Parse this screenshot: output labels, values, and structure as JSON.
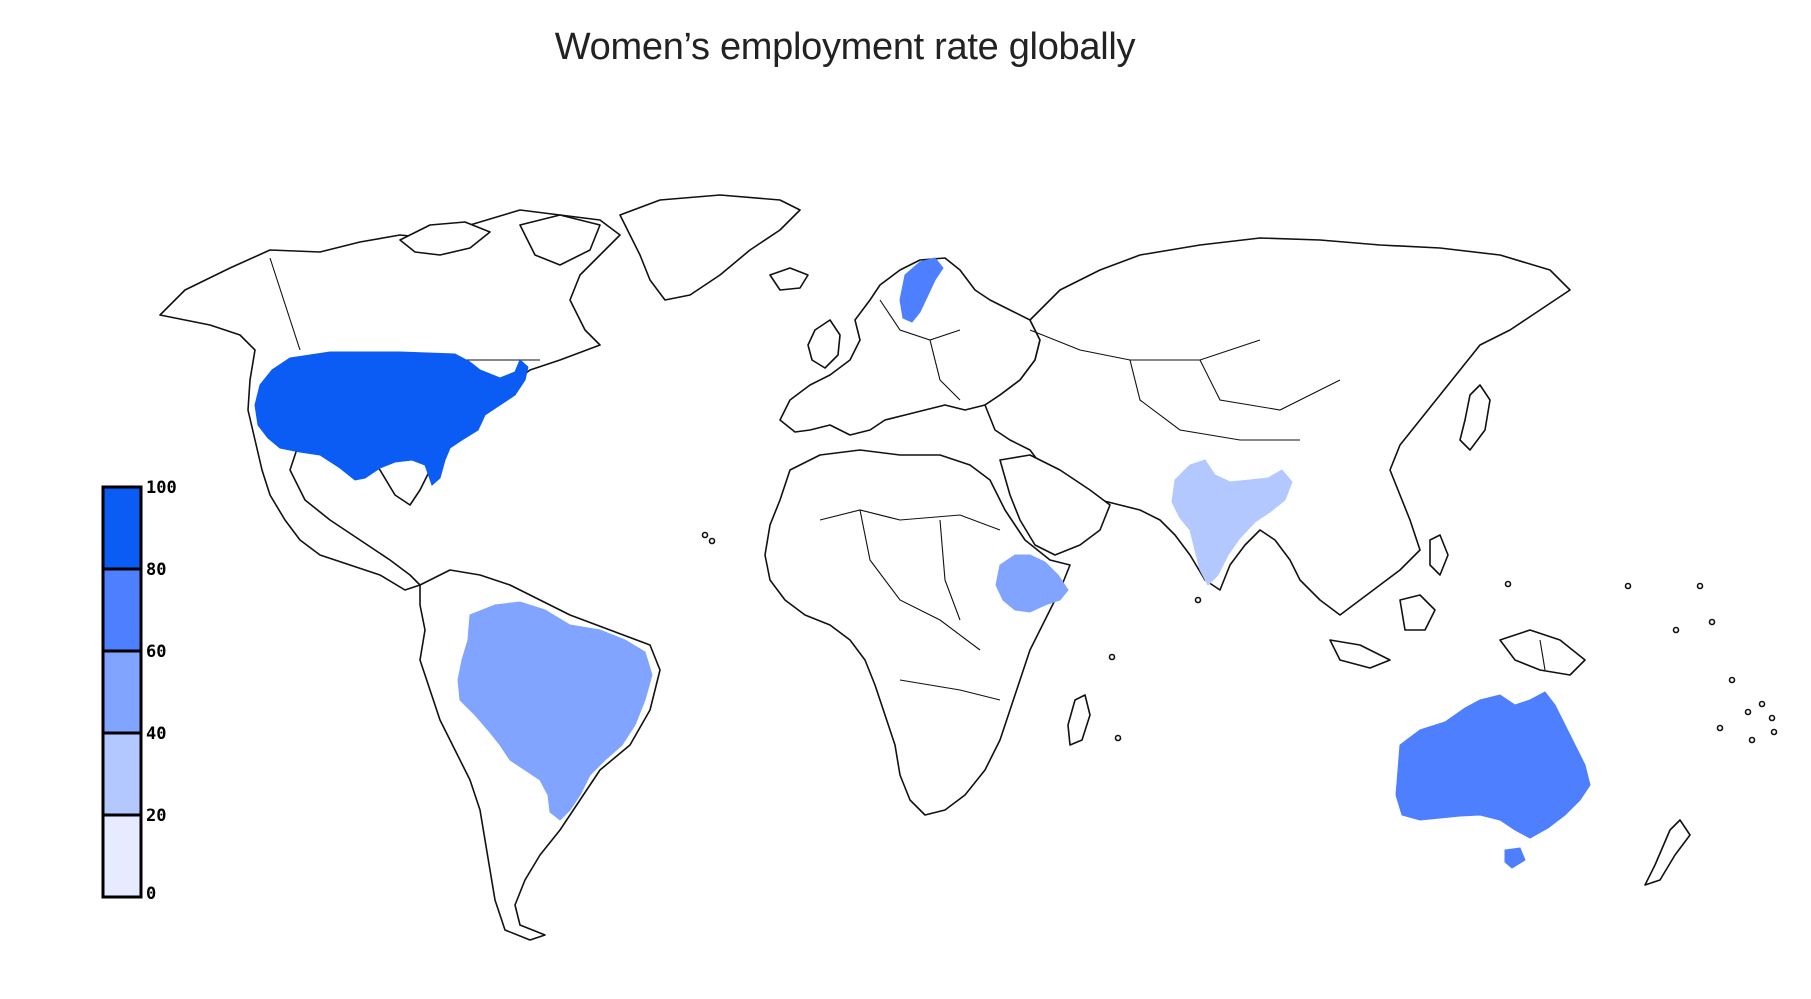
{
  "title": "Women’s employment rate globally",
  "legend": {
    "ticks": [
      "0",
      "20",
      "40",
      "60",
      "80",
      "100"
    ],
    "bins": [
      {
        "range": [
          0,
          20
        ],
        "color": "#e6ebff"
      },
      {
        "range": [
          20,
          40
        ],
        "color": "#b3c8ff"
      },
      {
        "range": [
          40,
          60
        ],
        "color": "#80a4ff"
      },
      {
        "range": [
          60,
          80
        ],
        "color": "#4d7fff"
      },
      {
        "range": [
          80,
          100
        ],
        "color": "#0a5cf5"
      }
    ]
  },
  "highlighted_countries": [
    {
      "name": "United States",
      "bin": "80-100",
      "color": "#0a5cf5"
    },
    {
      "name": "Sweden",
      "bin": "60-80",
      "color": "#4d7fff"
    },
    {
      "name": "Australia",
      "bin": "60-80",
      "color": "#4d7fff"
    },
    {
      "name": "Brazil",
      "bin": "40-60",
      "color": "#80a4ff"
    },
    {
      "name": "Ethiopia",
      "bin": "40-60",
      "color": "#80a4ff"
    },
    {
      "name": "India",
      "bin": "20-40",
      "color": "#b3c8ff"
    }
  ]
}
